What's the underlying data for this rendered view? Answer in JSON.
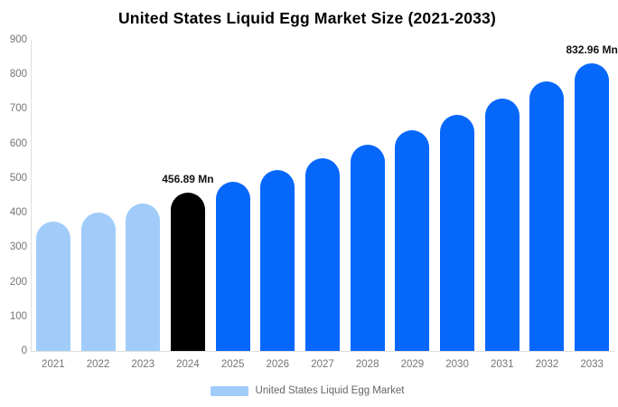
{
  "title": "United States Liquid Egg Market Size (2021-2033)",
  "legend": {
    "label": "United States Liquid Egg Market",
    "swatch_color": "#a1ccfa"
  },
  "colors": {
    "historic_bar": "#a1ccfa",
    "highlight_bar": "#000000",
    "forecast_bar": "#0667fb",
    "axis_line": "#dedede",
    "tick_text": "#757575",
    "legend_text": "#666666"
  },
  "chart_data": {
    "type": "bar",
    "title": "United States Liquid Egg Market Size (2021-2033)",
    "categories": [
      "2021",
      "2022",
      "2023",
      "2024",
      "2025",
      "2026",
      "2027",
      "2028",
      "2029",
      "2030",
      "2031",
      "2032",
      "2033"
    ],
    "values": [
      374,
      400,
      427,
      456.89,
      488,
      522,
      558,
      597,
      638,
      682,
      729,
      779,
      832.96
    ],
    "unit": "Mn",
    "xlabel": "",
    "ylabel": "",
    "ylim": [
      0,
      900
    ],
    "yticks": [
      0,
      100,
      200,
      300,
      400,
      500,
      600,
      700,
      800,
      900
    ],
    "grid": false,
    "bar_colors": [
      "#a1ccfa",
      "#a1ccfa",
      "#a1ccfa",
      "#000000",
      "#0667fb",
      "#0667fb",
      "#0667fb",
      "#0667fb",
      "#0667fb",
      "#0667fb",
      "#0667fb",
      "#0667fb",
      "#0667fb"
    ],
    "data_labels": [
      {
        "index": 3,
        "text": "456.89 Mn"
      },
      {
        "index": 12,
        "text": "832.96 Mn"
      }
    ],
    "legend_entries": [
      "United States Liquid Egg Market"
    ],
    "legend_position": "bottom"
  }
}
